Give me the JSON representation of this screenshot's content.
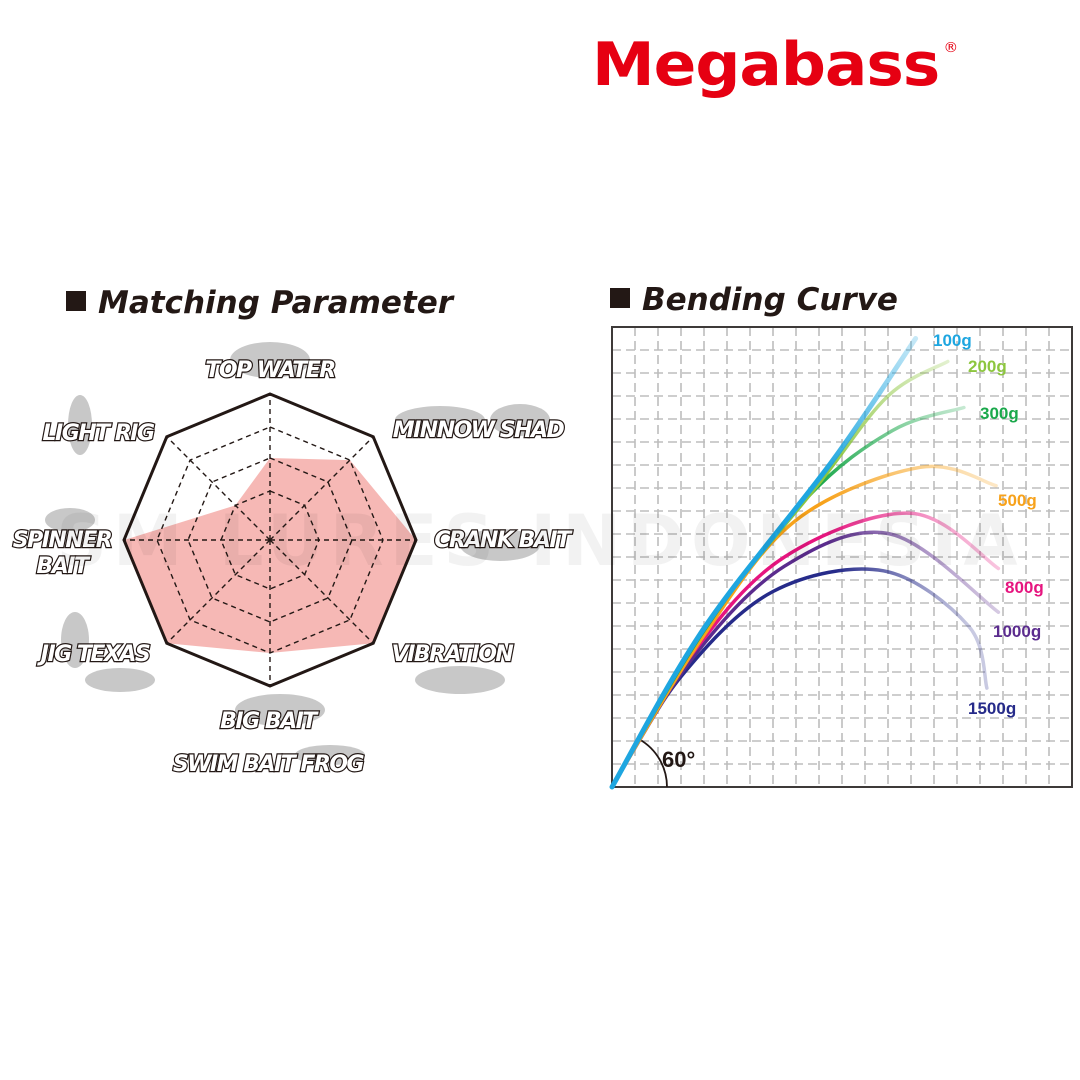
{
  "brand": {
    "logo": "Megabass",
    "registered": "®",
    "color": "#e60012"
  },
  "watermark": "SM LURES INDONESIA",
  "chart_data": [
    {
      "type": "radar",
      "title": "Matching Parameter",
      "max": 4,
      "fill_color": "#f4aca8",
      "axes": [
        "TOP WATER",
        "MINNOW SHAD",
        "CRANK BAIT",
        "VIBRATION",
        "BIG BAIT\nSWIM BAIT  FROG",
        "JIG  TEXAS",
        "SPINNER\nBAIT",
        "LIGHT RIG"
      ],
      "labels": [
        [
          "TOP WATER"
        ],
        [
          "MINNOW SHAD"
        ],
        [
          "CRANK BAIT"
        ],
        [
          "VIBRATION"
        ],
        [
          "BIG BAIT",
          "SWIM BAIT  FROG"
        ],
        [
          "JIG  TEXAS"
        ],
        [
          "SPINNER",
          "BAIT"
        ],
        [
          "LIGHT RIG"
        ]
      ],
      "values": [
        2,
        3,
        4,
        4,
        3,
        4,
        4,
        1
      ]
    },
    {
      "type": "line",
      "title": "Bending Curve",
      "angle_label": "60°",
      "grid": true,
      "series": [
        {
          "name": "100g",
          "color": "#1ea6e0",
          "points": [
            [
              0,
              0
            ],
            [
              4,
              6.9
            ],
            [
              9.6,
              14.2
            ],
            [
              13.2,
              19.5
            ]
          ]
        },
        {
          "name": "200g",
          "color": "#8dc63f",
          "points": [
            [
              0,
              0
            ],
            [
              4,
              6.9
            ],
            [
              9,
              13.2
            ],
            [
              12,
              17
            ],
            [
              14.6,
              18.5
            ]
          ]
        },
        {
          "name": "300g",
          "color": "#1aa84b",
          "points": [
            [
              0,
              0
            ],
            [
              4,
              6.8
            ],
            [
              8.5,
              12.6
            ],
            [
              12.2,
              15.5
            ],
            [
              15.3,
              16.5
            ]
          ]
        },
        {
          "name": "500g",
          "color": "#f7a21b",
          "points": [
            [
              0,
              0
            ],
            [
              4,
              6.6
            ],
            [
              8,
              11.6
            ],
            [
              13.4,
              13.9
            ],
            [
              16.7,
              13.1
            ]
          ]
        },
        {
          "name": "800g",
          "color": "#e6157f",
          "points": [
            [
              0,
              0
            ],
            [
              3.5,
              5.8
            ],
            [
              7.5,
              10
            ],
            [
              13,
              11.9
            ],
            [
              16.8,
              9.5
            ]
          ]
        },
        {
          "name": "1000g",
          "color": "#5b2c8e",
          "points": [
            [
              0,
              0
            ],
            [
              3.5,
              5.6
            ],
            [
              7.5,
              9.6
            ],
            [
              12.1,
              11
            ],
            [
              16.8,
              7.6
            ]
          ]
        },
        {
          "name": "1500g",
          "color": "#262b8a",
          "points": [
            [
              0,
              0
            ],
            [
              3,
              4.8
            ],
            [
              7,
              8.5
            ],
            [
              11.8,
              9.4
            ],
            [
              15.5,
              7
            ],
            [
              16.3,
              4.3
            ]
          ]
        }
      ]
    }
  ]
}
